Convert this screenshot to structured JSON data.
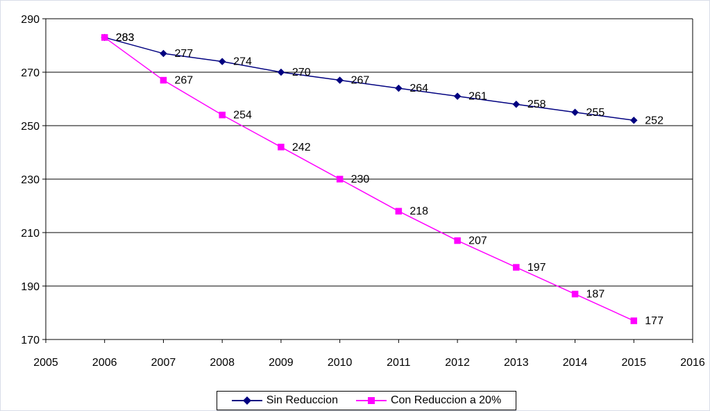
{
  "chart_data": {
    "type": "line",
    "x": [
      2006,
      2007,
      2008,
      2009,
      2010,
      2011,
      2012,
      2013,
      2014,
      2015
    ],
    "xlim": [
      2005,
      2016
    ],
    "ylim": [
      170,
      290
    ],
    "yticks": [
      170,
      190,
      210,
      230,
      250,
      270,
      290
    ],
    "xticks": [
      2005,
      2006,
      2007,
      2008,
      2009,
      2010,
      2011,
      2012,
      2013,
      2014,
      2015,
      2016
    ],
    "grid": "horizontal",
    "legend_position": "bottom",
    "series": [
      {
        "name": "Sin Reduccion",
        "color": "#000080",
        "marker": "diamond",
        "values": [
          283,
          277,
          274,
          270,
          267,
          264,
          261,
          258,
          255,
          252
        ]
      },
      {
        "name": "Con Reduccion a 20%",
        "color": "#ff00ff",
        "marker": "square",
        "values": [
          283,
          267,
          254,
          242,
          230,
          218,
          207,
          197,
          187,
          177
        ]
      }
    ]
  }
}
